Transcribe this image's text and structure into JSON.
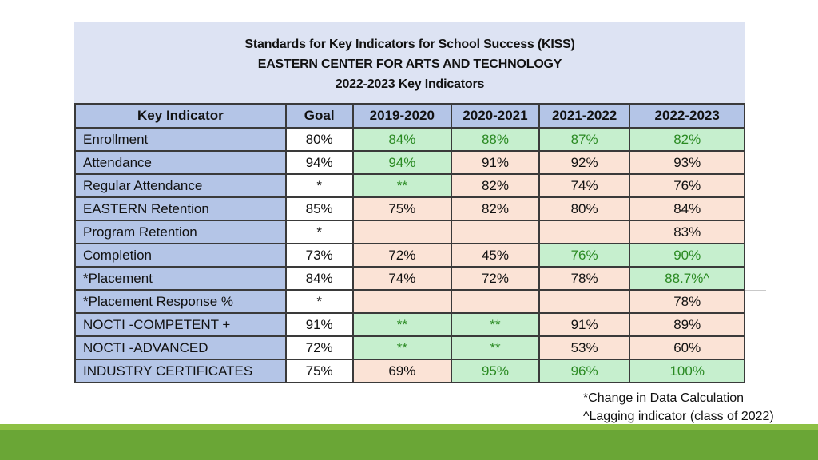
{
  "header": {
    "line1": "Standards for Key Indicators for School Success (KISS)",
    "line2": "EASTERN CENTER FOR ARTS AND TECHNOLOGY",
    "line3": "2022-2023 Key Indicators"
  },
  "columns": [
    "Key Indicator",
    "Goal",
    "2019-2020",
    "2020-2021",
    "2021-2022",
    "2022-2023"
  ],
  "colors": {
    "green_fill": "#c6efce",
    "green_text": "#2a8a22",
    "peach_fill": "#fbe3d6",
    "header_blue": "#b4c5e7"
  },
  "rows": [
    {
      "indicator": "Enrollment",
      "goal": "80%",
      "values": [
        "84%",
        "88%",
        "87%",
        "82%"
      ],
      "status": [
        "g",
        "g",
        "g",
        "g"
      ]
    },
    {
      "indicator": "Attendance",
      "goal": "94%",
      "values": [
        "94%",
        "91%",
        "92%",
        "93%"
      ],
      "status": [
        "g",
        "o",
        "o",
        "o"
      ]
    },
    {
      "indicator": "Regular Attendance",
      "goal": "*",
      "values": [
        "**",
        "82%",
        "74%",
        "76%"
      ],
      "status": [
        "g",
        "o",
        "o",
        "o"
      ]
    },
    {
      "indicator": "EASTERN Retention",
      "goal": "85%",
      "values": [
        "75%",
        "82%",
        "80%",
        "84%"
      ],
      "status": [
        "o",
        "o",
        "o",
        "o"
      ]
    },
    {
      "indicator": "Program Retention",
      "goal": "*",
      "values": [
        "",
        "",
        "",
        "83%"
      ],
      "status": [
        "o",
        "o",
        "o",
        "o"
      ]
    },
    {
      "indicator": "Completion",
      "goal": "73%",
      "values": [
        "72%",
        "45%",
        "76%",
        "90%"
      ],
      "status": [
        "o",
        "o",
        "g",
        "g"
      ]
    },
    {
      "indicator": "*Placement",
      "goal": "84%",
      "values": [
        "74%",
        "72%",
        "78%",
        "88.7%^"
      ],
      "status": [
        "o",
        "o",
        "o",
        "g"
      ]
    },
    {
      "indicator": "*Placement Response %",
      "goal": "*",
      "values": [
        "",
        "",
        "",
        "78%"
      ],
      "status": [
        "o",
        "o",
        "o",
        "o"
      ]
    },
    {
      "indicator": "NOCTI -COMPETENT +",
      "goal": "91%",
      "values": [
        "**",
        "**",
        "91%",
        "89%"
      ],
      "status": [
        "g",
        "g",
        "o",
        "o"
      ]
    },
    {
      "indicator": "NOCTI -ADVANCED",
      "goal": "72%",
      "values": [
        "**",
        "**",
        "53%",
        "60%"
      ],
      "status": [
        "g",
        "g",
        "o",
        "o"
      ]
    },
    {
      "indicator": "INDUSTRY CERTIFICATES",
      "goal": "75%",
      "values": [
        "69%",
        "95%",
        "96%",
        "100%"
      ],
      "status": [
        "o",
        "g",
        "g",
        "g"
      ]
    }
  ],
  "notes": {
    "note1": "*Change in Data Calculation",
    "note2": "^Lagging indicator (class of 2022)"
  }
}
